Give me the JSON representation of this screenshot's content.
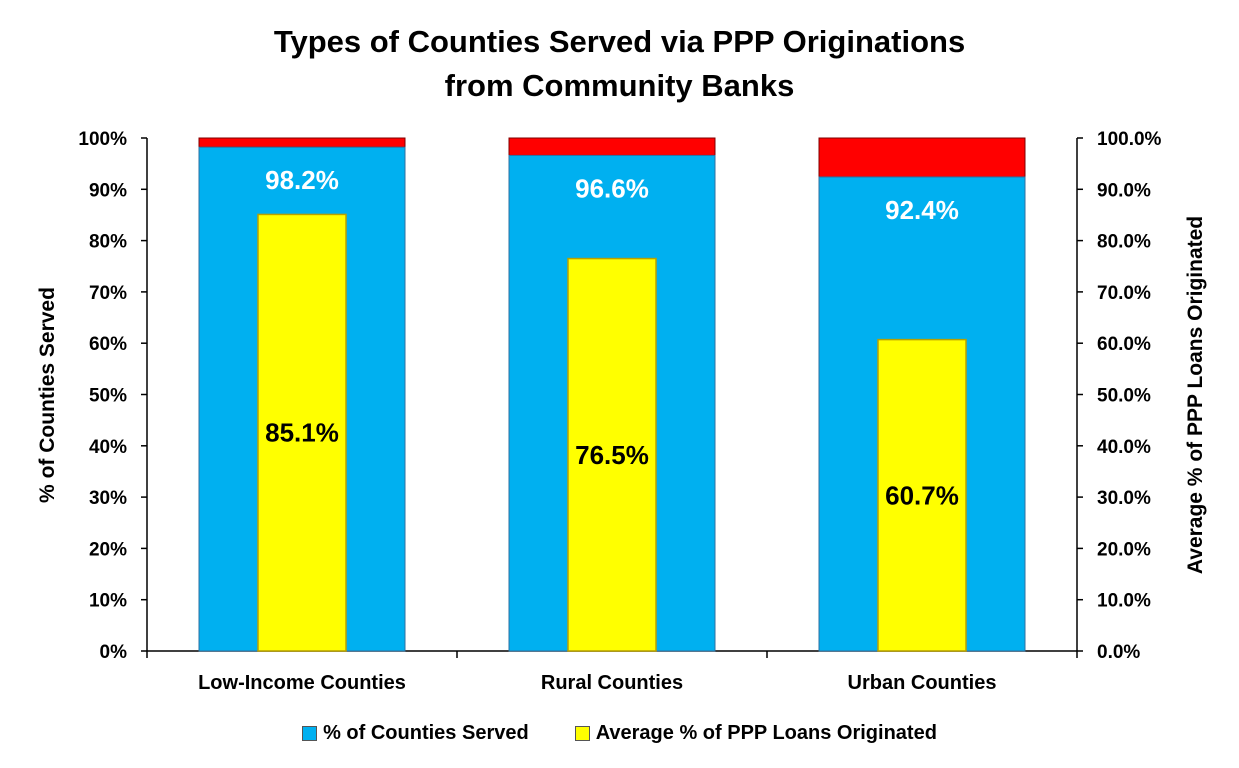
{
  "chart_data": {
    "type": "bar",
    "title_lines": [
      "Types of Counties Served via PPP Originations",
      "from Community Banks"
    ],
    "categories": [
      "Low-Income Counties",
      "Rural Counties",
      "Urban Counties"
    ],
    "series": [
      {
        "name": "% of Counties Served",
        "axis": "left",
        "values": [
          98.2,
          96.6,
          92.4
        ],
        "labels": [
          "98.2%",
          "96.6%",
          "92.4%"
        ],
        "color": "#00b0f0"
      },
      {
        "name": "Average % of PPP Loans Originated",
        "axis": "right",
        "values": [
          85.1,
          76.5,
          60.7
        ],
        "labels": [
          "85.1%",
          "76.5%",
          "60.7%"
        ],
        "color": "#ffff00"
      }
    ],
    "remainder_color": "#ff0000",
    "ylabel_left": "% of Counties Served",
    "ylabel_right": "Average % of PPP Loans Originated",
    "ylim": [
      0,
      100
    ],
    "yticks_left": [
      "0%",
      "10%",
      "20%",
      "30%",
      "40%",
      "50%",
      "60%",
      "70%",
      "80%",
      "90%",
      "100%"
    ],
    "yticks_right": [
      "0.0%",
      "10.0%",
      "20.0%",
      "30.0%",
      "40.0%",
      "50.0%",
      "60.0%",
      "70.0%",
      "80.0%",
      "90.0%",
      "100.0%"
    ],
    "legend_position": "bottom",
    "grid": false
  }
}
